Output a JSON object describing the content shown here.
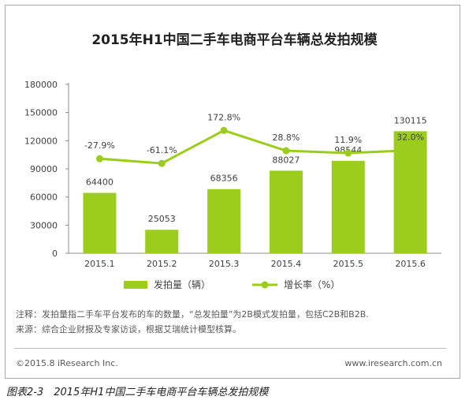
{
  "chart_data": {
    "type": "bar",
    "title": "2015年H1中国二手车电商平台车辆总发拍规模",
    "categories": [
      "2015.1",
      "2015.2",
      "2015.3",
      "2015.4",
      "2015.5",
      "2015.6"
    ],
    "series": [
      {
        "name": "发拍量（辆）",
        "type": "bar",
        "color": "#9ccc1c",
        "values": [
          64400,
          25053,
          68356,
          88027,
          98544,
          130115
        ],
        "labels": [
          "64400",
          "25053",
          "68356",
          "88027",
          "98544",
          "130115"
        ]
      },
      {
        "name": "增长率（%）",
        "type": "line",
        "color": "#9ccc1c",
        "values": [
          -27.9,
          -61.1,
          172.8,
          28.8,
          11.9,
          32.0
        ],
        "labels": [
          "-27.9%",
          "-61.1%",
          "172.8%",
          "28.8%",
          "11.9%",
          "32.0%"
        ]
      }
    ],
    "ylim": [
      0,
      180000
    ],
    "yticks": [
      "180000",
      "150000",
      "120000",
      "90000",
      "60000",
      "30000",
      "0"
    ],
    "y2lim": [
      -700,
      500
    ],
    "grid": false,
    "legend_position": "bottom"
  },
  "notes": {
    "line1": "注释：发拍量指二手车平台发布的车的数量，“总发拍量”为2B模式发拍量，包括C2B和B2B.",
    "line2": "来源：综合企业财报及专家访谈，根据艾瑞统计模型核算。"
  },
  "footer": {
    "copyright": "©2015.8 iResearch Inc.",
    "website": "www.iresearch.com.cn"
  },
  "caption": "图表2-3　2015年H1中国二手车电商平台车辆总发拍规模"
}
